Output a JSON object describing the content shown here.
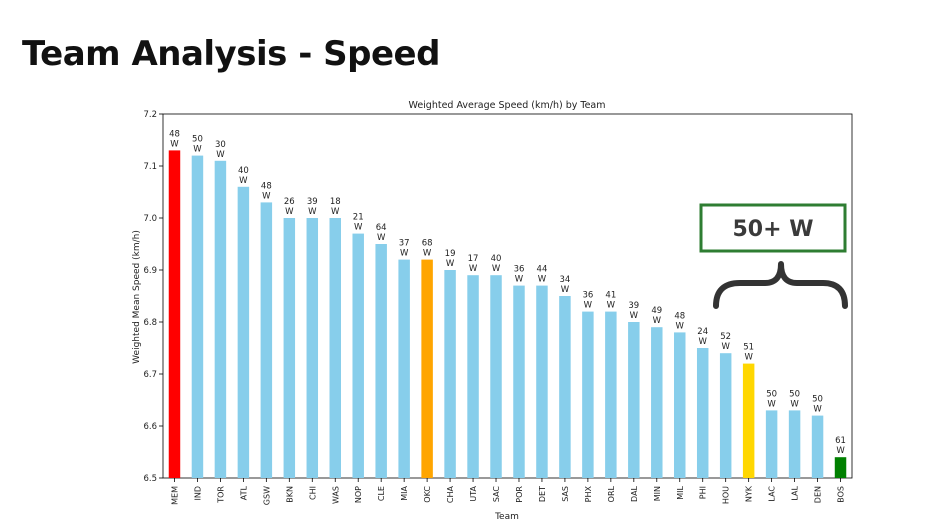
{
  "slide": {
    "title": "Team Analysis - Speed"
  },
  "chart_data": {
    "type": "bar",
    "title": "Weighted Average Speed (km/h) by Team",
    "xlabel": "Team",
    "ylabel": "Weighted Mean Speed (km/h)",
    "ylim": [
      6.5,
      7.2
    ],
    "yticks": [
      "6.5",
      "6.6",
      "6.7",
      "6.8",
      "6.9",
      "7.0",
      "7.1",
      "7.2"
    ],
    "grid": false,
    "categories": [
      "MEM",
      "IND",
      "TOR",
      "ATL",
      "GSW",
      "BKN",
      "CHI",
      "WAS",
      "NOP",
      "CLE",
      "MIA",
      "OKC",
      "CHA",
      "UTA",
      "SAC",
      "POR",
      "DET",
      "SAS",
      "PHX",
      "ORL",
      "DAL",
      "MIN",
      "MIL",
      "PHI",
      "HOU",
      "NYK",
      "LAC",
      "LAL",
      "DEN",
      "BOS"
    ],
    "values": [
      7.13,
      7.12,
      7.11,
      7.06,
      7.03,
      7.0,
      7.0,
      7.0,
      6.97,
      6.95,
      6.92,
      6.92,
      6.9,
      6.89,
      6.89,
      6.87,
      6.87,
      6.85,
      6.82,
      6.82,
      6.8,
      6.79,
      6.78,
      6.75,
      6.74,
      6.72,
      6.63,
      6.63,
      6.62,
      6.54
    ],
    "data_labels": [
      "48\nW",
      "50\nW",
      "30\nW",
      "40\nW",
      "48\nW",
      "26\nW",
      "39\nW",
      "18\nW",
      "21\nW",
      "64\nW",
      "37\nW",
      "68\nW",
      "19\nW",
      "17\nW",
      "40\nW",
      "36\nW",
      "44\nW",
      "34\nW",
      "36\nW",
      "41\nW",
      "39\nW",
      "49\nW",
      "48\nW",
      "24\nW",
      "52\nW",
      "51\nW",
      "50\nW",
      "50\nW",
      "50\nW",
      "61\nW"
    ],
    "colors": [
      "#ff0000",
      "#87ceeb",
      "#87ceeb",
      "#87ceeb",
      "#87ceeb",
      "#87ceeb",
      "#87ceeb",
      "#87ceeb",
      "#87ceeb",
      "#87ceeb",
      "#87ceeb",
      "#ffa500",
      "#87ceeb",
      "#87ceeb",
      "#87ceeb",
      "#87ceeb",
      "#87ceeb",
      "#87ceeb",
      "#87ceeb",
      "#87ceeb",
      "#87ceeb",
      "#87ceeb",
      "#87ceeb",
      "#87ceeb",
      "#87ceeb",
      "#ffd700",
      "#87ceeb",
      "#87ceeb",
      "#87ceeb",
      "#008000"
    ],
    "annotation": {
      "text": "50+ W",
      "color": "#2e7d32",
      "brace_color": "#333333"
    }
  }
}
